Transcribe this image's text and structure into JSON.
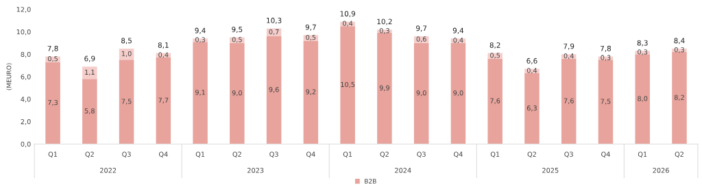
{
  "chart_data": {
    "type": "bar",
    "stacked": true,
    "ylabel": "(MEURO)",
    "categories": [
      "Q1",
      "Q2",
      "Q3",
      "Q4",
      "Q1",
      "Q2",
      "Q3",
      "Q4",
      "Q1",
      "Q2",
      "Q3",
      "Q4",
      "Q1",
      "Q2",
      "Q3",
      "Q4",
      "Q1",
      "Q2"
    ],
    "series": [
      {
        "name": "B2B",
        "color": "#e8a39c",
        "values": [
          7.3,
          5.8,
          7.5,
          7.7,
          9.1,
          9.0,
          9.6,
          9.2,
          10.5,
          9.9,
          9.0,
          9.0,
          7.6,
          6.3,
          7.6,
          7.5,
          8.0,
          8.2
        ],
        "value_labels": [
          "7,3",
          "5,8",
          "7,5",
          "7,7",
          "9,1",
          "9,0",
          "9,6",
          "9,2",
          "10,5",
          "9,9",
          "9,0",
          "9,0",
          "7,6",
          "6,3",
          "7,6",
          "7,5",
          "8,0",
          "8,2"
        ]
      },
      {
        "color": "#f5cdca",
        "values": [
          0.5,
          1.1,
          1.0,
          0.4,
          0.3,
          0.5,
          0.7,
          0.5,
          0.4,
          0.3,
          0.6,
          0.4,
          0.5,
          0.4,
          0.4,
          0.3,
          0.3,
          0.3
        ],
        "value_labels": [
          "0,5",
          "1,1",
          "1,0",
          "0,4",
          "0,3",
          "0,5",
          "0,7",
          "0,5",
          "0,4",
          "0,3",
          "0,6",
          "0,4",
          "0,5",
          "0,4",
          "0,4",
          "0,3",
          "0,3",
          "0,3"
        ]
      }
    ],
    "totals": [
      "7,8",
      "6,9",
      "8,5",
      "8,1",
      "9,4",
      "9,5",
      "10,3",
      "9,7",
      "10,9",
      "10,2",
      "9,7",
      "9,4",
      "8,2",
      "6,6",
      "7,9",
      "7,8",
      "8,3",
      "8,4"
    ],
    "ylim": [
      0,
      12
    ],
    "yticks": [
      {
        "value": 0,
        "label": "0,0"
      },
      {
        "value": 2,
        "label": "2,0"
      },
      {
        "value": 4,
        "label": "4,0"
      },
      {
        "value": 6,
        "label": "6,0"
      },
      {
        "value": 8,
        "label": "8,0"
      },
      {
        "value": 10,
        "label": "10,0"
      },
      {
        "value": 12,
        "label": "12,0"
      }
    ],
    "annotations": [
      "2022",
      "2023",
      "2024",
      "2025",
      "2026"
    ],
    "grid": false,
    "legend": "bottom"
  }
}
